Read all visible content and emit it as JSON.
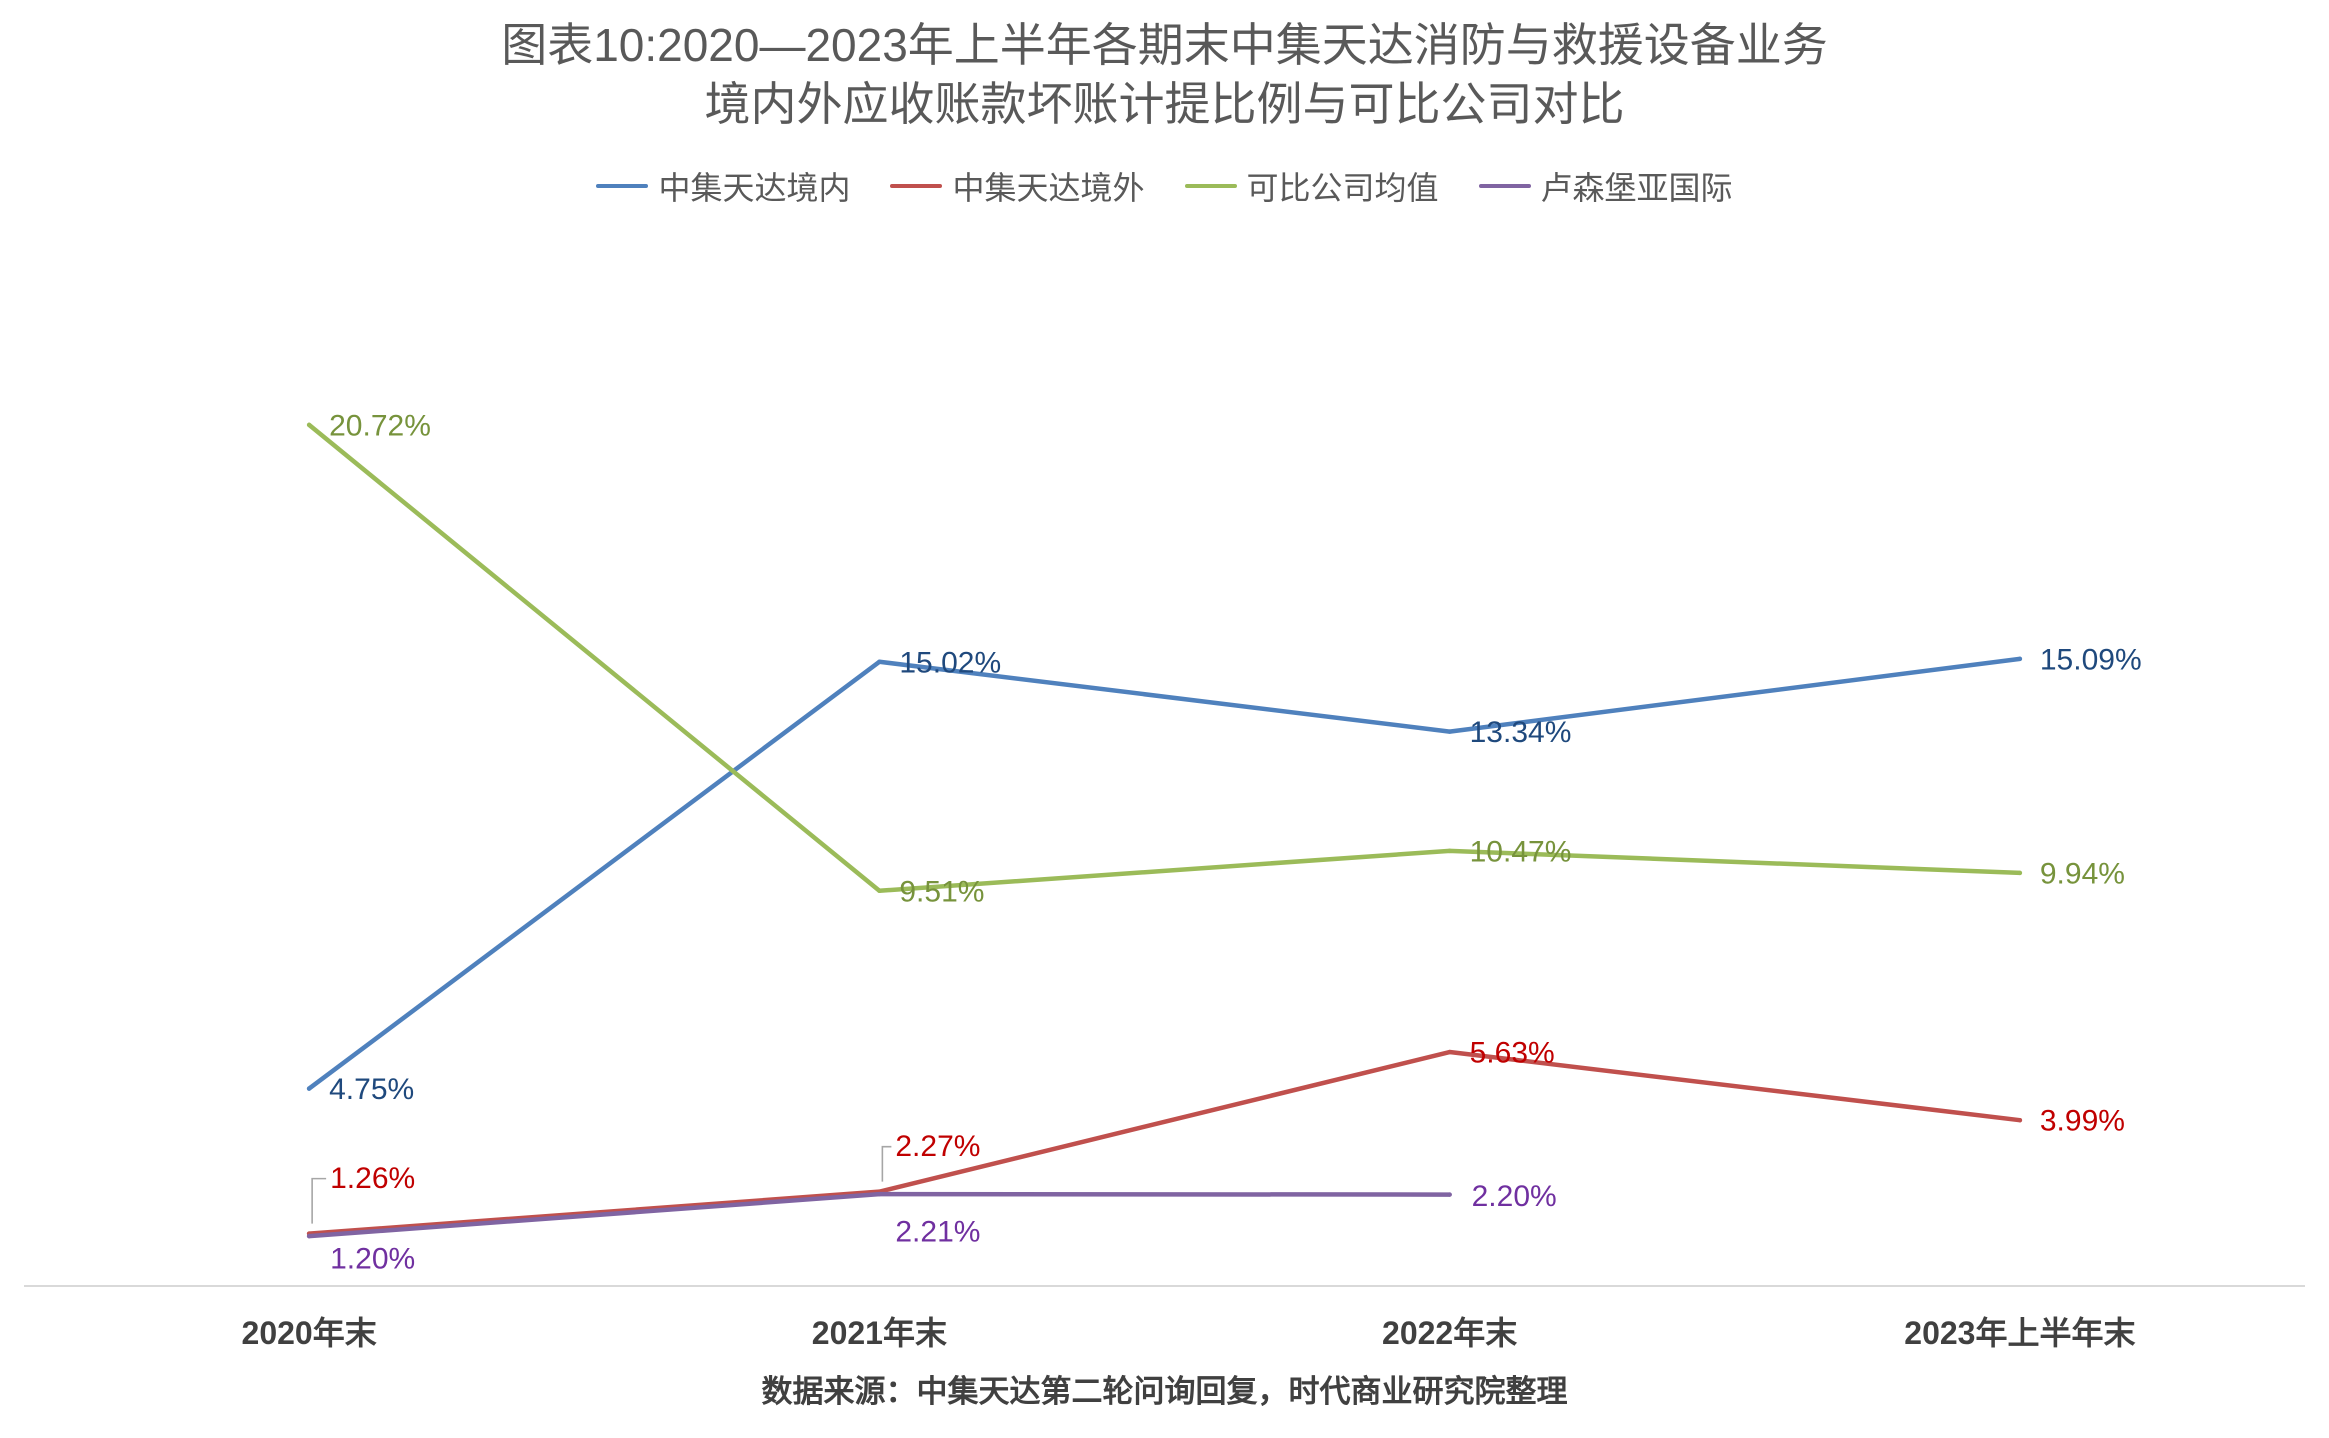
{
  "chart_data": {
    "type": "line",
    "title": [
      "图表10:2020—2023年上半年各期末中集天达消防与救援设备业务",
      "境内外应收账款坏账计提比例与可比公司对比"
    ],
    "categories": [
      "2020年末",
      "2021年末",
      "2022年末",
      "2023年上半年末"
    ],
    "unit": "%",
    "ylim": [
      0,
      25
    ],
    "y_axis_visible": false,
    "grid": false,
    "legend": "top",
    "series": [
      {
        "name": "中集天达境内",
        "color": "#4f81bd",
        "label_color": "#1f497d",
        "values": [
          4.75,
          15.02,
          13.34,
          15.09
        ],
        "labels": [
          "4.75%",
          "15.02%",
          "13.34%",
          "15.09%"
        ]
      },
      {
        "name": "中集天达境外",
        "color": "#c0504d",
        "label_color": "#c00000",
        "values": [
          1.26,
          2.27,
          5.63,
          3.99
        ],
        "labels": [
          "1.26%",
          "2.27%",
          "5.63%",
          "3.99%"
        ]
      },
      {
        "name": "可比公司均值",
        "color": "#9bbb59",
        "label_color": "#77933c",
        "values": [
          20.72,
          9.51,
          10.47,
          9.94
        ],
        "labels": [
          "20.72%",
          "9.51%",
          "10.47%",
          "9.94%"
        ]
      },
      {
        "name": "卢森堡亚国际",
        "color": "#8064a2",
        "label_color": "#7030a0",
        "values": [
          1.2,
          2.21,
          2.2,
          null
        ],
        "labels": [
          "1.20%",
          "2.21%",
          "2.20%",
          null
        ]
      }
    ]
  },
  "source": "数据来源：中集天达第二轮问询回复，时代商业研究院整理"
}
